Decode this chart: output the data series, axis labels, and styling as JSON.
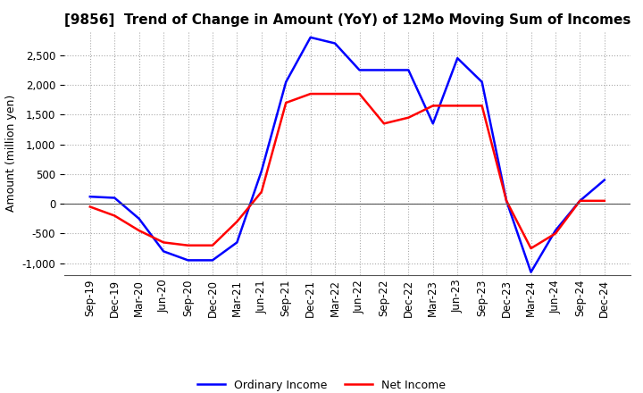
{
  "title": "[9856]  Trend of Change in Amount (YoY) of 12Mo Moving Sum of Incomes",
  "ylabel": "Amount (million yen)",
  "ylim": [
    -1200,
    2900
  ],
  "yticks": [
    -1000,
    -500,
    0,
    500,
    1000,
    1500,
    2000,
    2500
  ],
  "x_labels": [
    "Sep-19",
    "Dec-19",
    "Mar-20",
    "Jun-20",
    "Sep-20",
    "Dec-20",
    "Mar-21",
    "Jun-21",
    "Sep-21",
    "Dec-21",
    "Mar-22",
    "Jun-22",
    "Sep-22",
    "Dec-22",
    "Mar-23",
    "Jun-23",
    "Sep-23",
    "Dec-23",
    "Mar-24",
    "Jun-24",
    "Sep-24",
    "Dec-24"
  ],
  "ordinary_income": [
    120,
    100,
    -250,
    -800,
    -950,
    -950,
    -650,
    550,
    2050,
    2800,
    2700,
    2250,
    2250,
    2250,
    1350,
    2450,
    2050,
    50,
    -1150,
    -450,
    50,
    400
  ],
  "net_income": [
    -50,
    -200,
    -450,
    -650,
    -700,
    -700,
    -300,
    200,
    1700,
    1850,
    1850,
    1850,
    1350,
    1450,
    1650,
    1650,
    1650,
    50,
    -750,
    -500,
    50,
    50
  ],
  "ordinary_income_color": "#0000FF",
  "net_income_color": "#FF0000",
  "line_width": 1.8,
  "background_color": "#FFFFFF",
  "grid_color": "#AAAAAA",
  "title_fontsize": 11,
  "label_fontsize": 9,
  "tick_fontsize": 8.5
}
